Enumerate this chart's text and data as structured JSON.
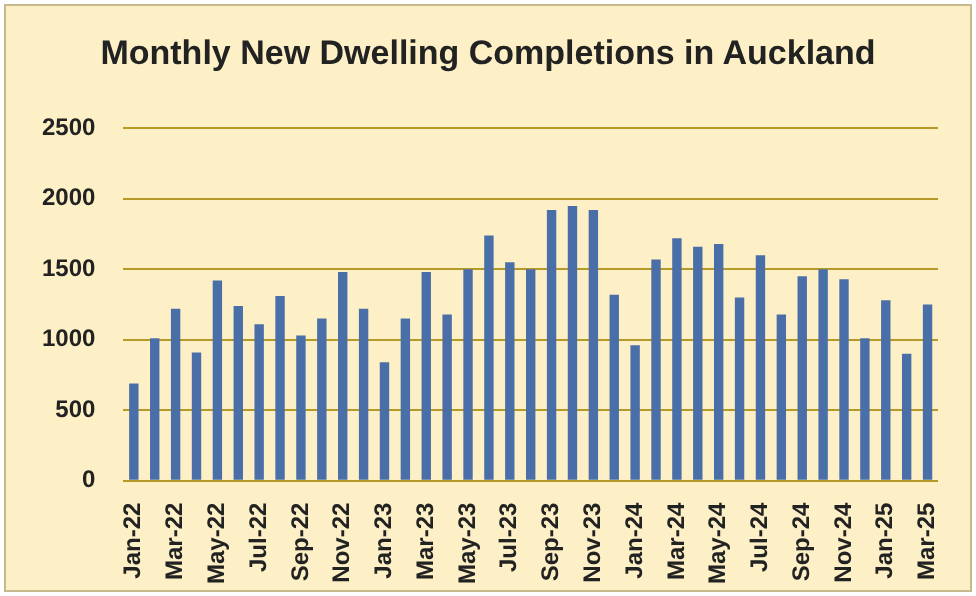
{
  "chart_data": {
    "type": "bar",
    "title": "Monthly New Dwelling Completions in Auckland",
    "categories": [
      "Jan-22",
      null,
      "Mar-22",
      null,
      "May-22",
      null,
      "Jul-22",
      null,
      "Sep-22",
      null,
      "Nov-22",
      null,
      "Jan-23",
      null,
      "Mar-23",
      null,
      "May-23",
      null,
      "Jul-23",
      null,
      "Sep-23",
      null,
      "Nov-23",
      null,
      "Jan-24",
      null,
      "Mar-24",
      null,
      "May-24",
      null,
      "Jul-24",
      null,
      "Sep-24",
      null,
      "Nov-24",
      null,
      "Jan-25",
      null,
      "Mar-25"
    ],
    "values": [
      690,
      1010,
      1220,
      910,
      1420,
      1240,
      1110,
      1310,
      1030,
      1150,
      1480,
      1220,
      840,
      1150,
      1480,
      1180,
      1500,
      1740,
      1550,
      1500,
      1920,
      1950,
      1920,
      1320,
      960,
      1570,
      1720,
      1660,
      1680,
      1300,
      1600,
      1180,
      1450,
      1500,
      1430,
      1010,
      1280,
      900,
      1250
    ],
    "color": "#4a6fa8",
    "ylim": [
      0,
      2500
    ],
    "yticks": [
      0,
      500,
      1000,
      1500,
      2000,
      2500
    ],
    "grid": "y"
  }
}
